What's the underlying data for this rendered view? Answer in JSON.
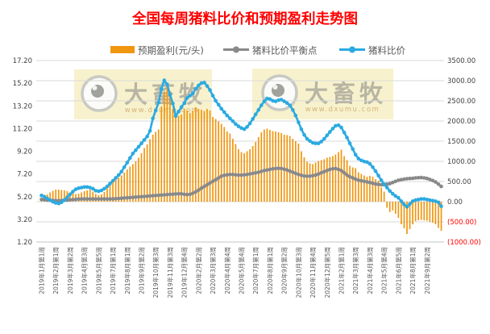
{
  "title": {
    "text": "全国每周猪料比价和预期盈利走势图",
    "color": "#ff0000"
  },
  "legend": {
    "items": [
      {
        "label": "预期盈利(元/头)",
        "swatch": "bar",
        "color": "#f0960f"
      },
      {
        "label": "猪料比价平衡点",
        "swatch": "line-dot",
        "color": "#898989"
      },
      {
        "label": "猪料比价",
        "swatch": "line-dot",
        "color": "#2baae1"
      }
    ]
  },
  "watermarks": [
    {
      "brand": "大畜牧",
      "url": "www.dxumu.com"
    },
    {
      "brand": "大畜牧",
      "url": "www.dxumu.com"
    }
  ],
  "chart_data": {
    "type": "combo-bar-line",
    "grid": "horizontal",
    "label_interval": 5,
    "categories": [
      "2019年1月第1周",
      "2019年2月第1周",
      "2019年3月第2周",
      "2019年4月第3周",
      "2019年5月第5周",
      "2019年7月第1周",
      "2019年8月第1周",
      "2019年9月第2周",
      "2019年10月第3周",
      "2019年11月第3周",
      "2019年12月第4周",
      "2020年2月第2周",
      "2020年3月第3周",
      "2020年4月第4周",
      "2020年5月第4周",
      "2020年7月第1周",
      "2020年8月第1周",
      "2020年9月第2周",
      "2020年10月第3周",
      "2020年11月第4周",
      "2020年12月第5周",
      "2021年2月第1周",
      "2021年3月第3周",
      "2021年4月第3周",
      "2021年5月第4周",
      "2021年6月第5周",
      "2021年8月第1周",
      "2021年9月第2周"
    ],
    "left_axis": {
      "min": 1.2,
      "max": 17.2,
      "ticks": [
        "17.20",
        "15.20",
        "13.20",
        "11.20",
        "9.20",
        "7.20",
        "5.20",
        "3.20",
        "1.20"
      ],
      "tick_values": [
        17.2,
        15.2,
        13.2,
        11.2,
        9.2,
        7.2,
        5.2,
        3.2,
        1.2
      ],
      "color": "#404040"
    },
    "right_axis": {
      "min": -1000,
      "max": 3500,
      "ticks": [
        "3500.00",
        "3000.00",
        "2500.00",
        "2000.00",
        "1500.00",
        "1000.00",
        "500.00",
        "0.00",
        "(500.00)",
        "(1000.00)"
      ],
      "tick_values": [
        3500,
        3000,
        2500,
        2000,
        1500,
        1000,
        500,
        0,
        -500,
        -1000
      ],
      "color": "#404040",
      "negative_color": "#ff0000"
    },
    "series": [
      {
        "name": "预期盈利(元/头)",
        "type": "bar",
        "axis": "right",
        "color": "#f0960f",
        "values": [
          90,
          130,
          180,
          230,
          270,
          300,
          300,
          290,
          280,
          260,
          230,
          210,
          190,
          200,
          230,
          260,
          280,
          300,
          250,
          190,
          160,
          180,
          240,
          330,
          430,
          500,
          550,
          600,
          650,
          720,
          800,
          870,
          930,
          1000,
          1090,
          1200,
          1330,
          1420,
          1550,
          1660,
          1730,
          1790,
          2360,
          2730,
          2900,
          2630,
          2300,
          2150,
          2130,
          2160,
          2300,
          2260,
          2200,
          2250,
          2340,
          2300,
          2280,
          2250,
          2300,
          2260,
          2100,
          2050,
          1990,
          1930,
          1850,
          1740,
          1690,
          1560,
          1430,
          1300,
          1230,
          1200,
          1250,
          1300,
          1380,
          1480,
          1600,
          1720,
          1790,
          1810,
          1780,
          1750,
          1740,
          1720,
          1700,
          1660,
          1650,
          1630,
          1560,
          1500,
          1440,
          1250,
          1100,
          990,
          950,
          930,
          970,
          1010,
          1030,
          1050,
          1090,
          1110,
          1130,
          1170,
          1230,
          1290,
          1130,
          1030,
          890,
          850,
          830,
          730,
          690,
          650,
          620,
          640,
          620,
          560,
          520,
          350,
          250,
          -150,
          -255,
          -215,
          -300,
          -400,
          -560,
          -660,
          -800,
          -680,
          -560,
          -480,
          -460,
          -450,
          -460,
          -470,
          -500,
          -520,
          -560,
          -650,
          -720
        ]
      },
      {
        "name": "猪料比价平衡点",
        "type": "line",
        "axis": "left",
        "color": "#898989",
        "values": [
          4.95,
          4.93,
          4.9,
          4.88,
          4.87,
          4.85,
          4.85,
          4.86,
          4.88,
          4.9,
          4.92,
          4.94,
          4.96,
          4.98,
          5.0,
          5.0,
          5.0,
          5.0,
          5.0,
          5.0,
          5.0,
          5.0,
          5.0,
          5.0,
          5.0,
          5.0,
          5.02,
          5.04,
          5.06,
          5.08,
          5.1,
          5.12,
          5.14,
          5.16,
          5.18,
          5.2,
          5.22,
          5.24,
          5.26,
          5.28,
          5.3,
          5.32,
          5.34,
          5.36,
          5.38,
          5.4,
          5.42,
          5.44,
          5.45,
          5.45,
          5.4,
          5.38,
          5.4,
          5.5,
          5.62,
          5.78,
          5.95,
          6.1,
          6.25,
          6.4,
          6.55,
          6.7,
          6.85,
          7.0,
          7.08,
          7.12,
          7.15,
          7.15,
          7.12,
          7.1,
          7.1,
          7.12,
          7.15,
          7.2,
          7.25,
          7.3,
          7.35,
          7.42,
          7.5,
          7.55,
          7.6,
          7.65,
          7.68,
          7.7,
          7.68,
          7.62,
          7.55,
          7.45,
          7.35,
          7.25,
          7.15,
          7.08,
          7.02,
          7.0,
          7.0,
          7.05,
          7.1,
          7.2,
          7.3,
          7.4,
          7.5,
          7.6,
          7.65,
          7.68,
          7.6,
          7.5,
          7.3,
          7.1,
          6.95,
          6.85,
          6.75,
          6.65,
          6.6,
          6.55,
          6.5,
          6.45,
          6.38,
          6.32,
          6.28,
          6.25,
          6.25,
          6.3,
          6.35,
          6.45,
          6.55,
          6.65,
          6.7,
          6.75,
          6.78,
          6.8,
          6.82,
          6.85,
          6.87,
          6.88,
          6.85,
          6.8,
          6.72,
          6.62,
          6.5,
          6.3,
          6.1
        ]
      },
      {
        "name": "猪料比价",
        "type": "line",
        "axis": "left",
        "color": "#2baae1",
        "values": [
          5.3,
          5.2,
          5.05,
          4.9,
          4.75,
          4.65,
          4.6,
          4.7,
          4.9,
          5.15,
          5.4,
          5.65,
          5.85,
          5.95,
          6.0,
          6.05,
          6.05,
          6.0,
          5.9,
          5.72,
          5.68,
          5.75,
          5.9,
          6.1,
          6.35,
          6.6,
          6.85,
          7.1,
          7.4,
          7.8,
          8.2,
          8.6,
          9.0,
          9.3,
          9.6,
          9.9,
          10.2,
          10.5,
          11.0,
          12.1,
          12.8,
          13.5,
          14.7,
          15.45,
          15.1,
          14.2,
          13.4,
          12.3,
          12.7,
          13.1,
          13.45,
          13.9,
          14.1,
          14.3,
          14.7,
          15.0,
          15.2,
          15.25,
          14.95,
          14.6,
          14.1,
          13.65,
          13.3,
          12.95,
          12.65,
          12.35,
          12.1,
          11.85,
          11.6,
          11.4,
          11.25,
          11.15,
          11.35,
          11.65,
          12.05,
          12.45,
          12.85,
          13.25,
          13.6,
          13.85,
          13.8,
          13.65,
          13.6,
          13.7,
          13.75,
          13.6,
          13.45,
          13.25,
          12.85,
          12.35,
          11.75,
          11.15,
          10.65,
          10.3,
          10.1,
          9.95,
          9.9,
          9.9,
          10.05,
          10.3,
          10.6,
          10.9,
          11.2,
          11.45,
          11.5,
          11.3,
          10.85,
          10.4,
          9.9,
          9.4,
          8.9,
          8.55,
          8.4,
          8.3,
          8.25,
          8.1,
          7.8,
          7.45,
          7.05,
          6.65,
          6.3,
          6.0,
          5.7,
          5.45,
          5.25,
          5.1,
          4.8,
          4.5,
          4.3,
          4.55,
          4.8,
          4.9,
          4.95,
          5.0,
          5.0,
          4.95,
          4.9,
          4.85,
          4.8,
          4.7,
          4.35
        ]
      }
    ]
  }
}
